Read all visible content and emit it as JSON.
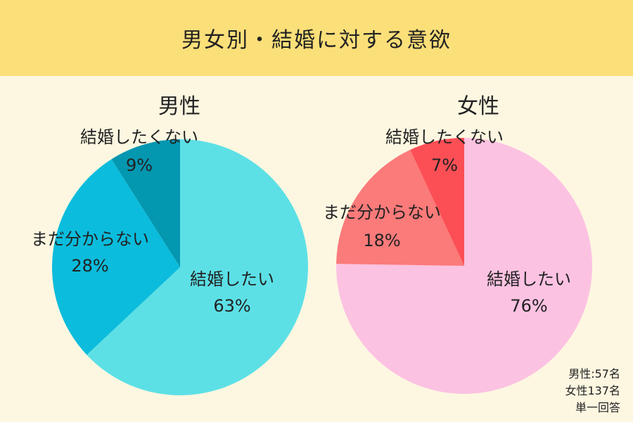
{
  "title": "男女別・結婚に対する意欲",
  "chart_data": [
    {
      "type": "pie",
      "title": "男性",
      "slices": [
        {
          "label": "結婚したい",
          "value": 63,
          "display": "63%",
          "color": "#5ce0e6"
        },
        {
          "label": "まだ分からない",
          "value": 28,
          "display": "28%",
          "color": "#0bbcdc"
        },
        {
          "label": "結婚したくない",
          "value": 9,
          "display": "9%",
          "color": "#0497b0"
        }
      ]
    },
    {
      "type": "pie",
      "title": "女性",
      "slices": [
        {
          "label": "結婚したい",
          "value": 76,
          "display": "76%",
          "color": "#fcc2e2"
        },
        {
          "label": "まだ分からない",
          "value": 18,
          "display": "18%",
          "color": "#fb7a7a"
        },
        {
          "label": "結婚したくない",
          "value": 7,
          "display": "7%",
          "color": "#fb4f55"
        }
      ]
    }
  ],
  "notes": [
    "男性:57名",
    "女性137名",
    "単一回答"
  ]
}
